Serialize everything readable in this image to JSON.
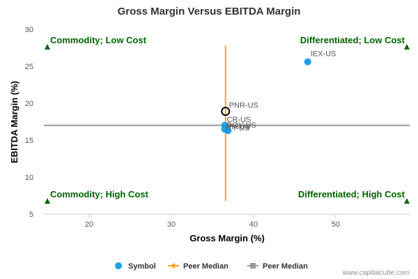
{
  "chart_data": {
    "type": "scatter",
    "title": "Gross Margin Versus EBITDA Margin",
    "xlabel": "Gross Margin (%)",
    "ylabel": "EBITDA Margin (%)",
    "xlim": [
      14.5,
      59
    ],
    "ylim": [
      5,
      30
    ],
    "x_ticks": [
      20,
      30,
      40,
      50
    ],
    "y_ticks": [
      5,
      10,
      15,
      20,
      25,
      30
    ],
    "grid": false,
    "points": [
      {
        "label": "IEX-US",
        "x": 46.6,
        "y": 25.6,
        "highlight": false
      },
      {
        "label": "PNR-US",
        "x": 36.6,
        "y": 18.9,
        "highlight": true
      },
      {
        "label": "CR-US",
        "x": 36.5,
        "y": 17.0,
        "highlight": false
      },
      {
        "label": "DOV-US",
        "x": 36.5,
        "y": 16.5,
        "highlight": false
      },
      {
        "label": "PH-US",
        "x": 36.8,
        "y": 16.4,
        "highlight": false
      },
      {
        "label": "ITT-US",
        "x": 36.9,
        "y": 16.3,
        "highlight": false
      }
    ],
    "peer_median_x": 36.6,
    "peer_median_y": 17.0,
    "peer_median_x_range": [
      6.8,
      27.8
    ],
    "quadrants": {
      "top_left": "Commodity; Low Cost",
      "top_right": "Differentiated; Low Cost",
      "bottom_left": "Commodity; High Cost",
      "bottom_right": "Differentiated; High Cost"
    },
    "legend": [
      {
        "label": "Symbol",
        "marker": "circle",
        "color": "#1aa1e6"
      },
      {
        "label": "Peer Median",
        "marker": "diamond",
        "color": "#f5a623"
      },
      {
        "label": "Peer Median",
        "marker": "square",
        "color": "#999999"
      }
    ],
    "legend_position": "bottom-center",
    "colors": {
      "symbol": "#1aa1e6",
      "median_x": "#f5a623",
      "median_y": "#999999",
      "quadrant_text": "#006400"
    }
  },
  "credit": "www.capitalcube.com"
}
